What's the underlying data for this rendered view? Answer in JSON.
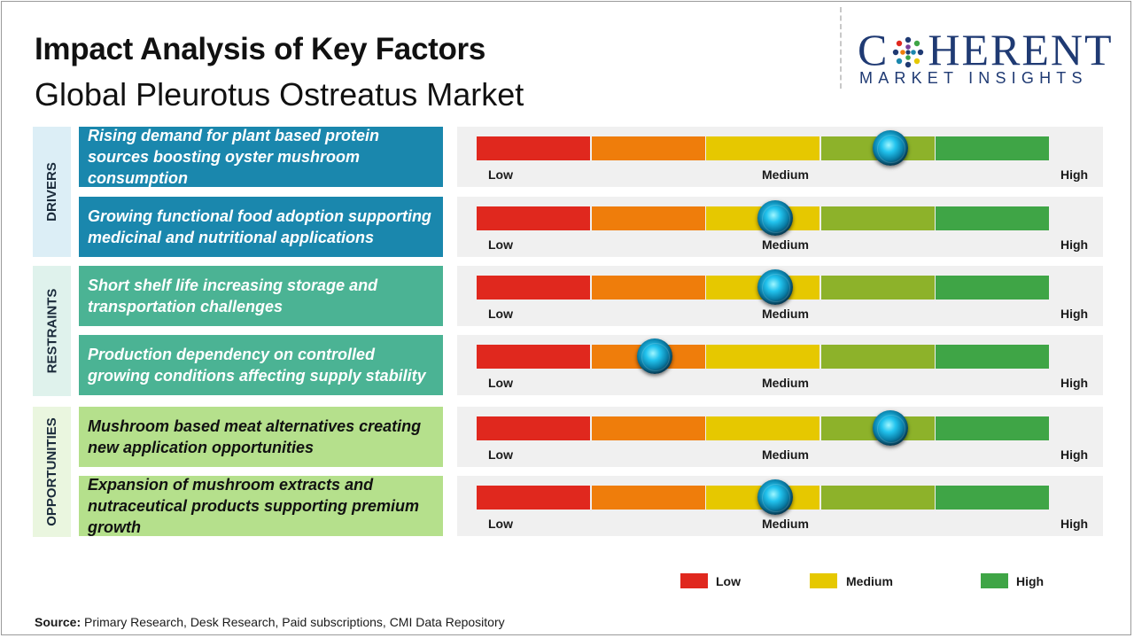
{
  "header": {
    "title": "Impact Analysis of Key Factors",
    "subtitle": "Global Pleurotus Ostreatus Market"
  },
  "logo": {
    "name_part1": "C",
    "name_part2": "HERENT",
    "tagline": "MARKET INSIGHTS"
  },
  "colors": {
    "low": "#e0281e",
    "low_mid": "#ef7d0b",
    "medium": "#e6c800",
    "mid_high": "#8db22a",
    "high": "#3fa546",
    "drivers_fill": "#1a87ad",
    "drivers_group": "#dceef6",
    "restraints_fill": "#4bb394",
    "restraints_group": "#dff2ec",
    "opportunities_fill": "#b5e08c",
    "opportunities_group": "#eaf6df"
  },
  "chart_data": {
    "type": "gauge",
    "scale": [
      "Low",
      "Medium",
      "High"
    ],
    "segments": 5,
    "axis_labels": {
      "low": "Low",
      "medium": "Medium",
      "high": "High"
    },
    "groups": [
      {
        "name": "DRIVERS",
        "factors": [
          {
            "text": "Rising demand for plant based protein sources boosting oyster mushroom consumption",
            "impact": 0.72
          },
          {
            "text": "Growing functional food adoption supporting medicinal and nutritional applications",
            "impact": 0.52
          }
        ]
      },
      {
        "name": "RESTRAINTS",
        "factors": [
          {
            "text": "Short shelf life increasing storage and transportation challenges",
            "impact": 0.52
          },
          {
            "text": "Production dependency on controlled growing conditions affecting supply stability",
            "impact": 0.31
          }
        ]
      },
      {
        "name": "OPPORTUNITIES",
        "factors": [
          {
            "text": "Mushroom based meat alternatives creating new application opportunities",
            "impact": 0.72
          },
          {
            "text": "Expansion of mushroom extracts and nutraceutical products supporting premium growth",
            "impact": 0.52
          }
        ]
      }
    ],
    "legend": [
      {
        "label": "Low",
        "color": "#e0281e"
      },
      {
        "label": "Medium",
        "color": "#e6c800"
      },
      {
        "label": "High",
        "color": "#3fa546"
      }
    ]
  },
  "footer": {
    "source_label": "Source:",
    "source_text": " Primary Research, Desk Research, Paid subscriptions, CMI Data Repository"
  }
}
